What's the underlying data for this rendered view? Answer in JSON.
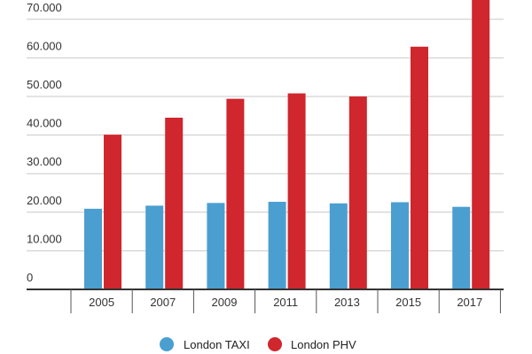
{
  "chart_data": {
    "type": "bar",
    "categories": [
      "2005",
      "2007",
      "2009",
      "2011",
      "2013",
      "2015",
      "2017"
    ],
    "series": [
      {
        "name": "London TAXI",
        "color": "#4a9fd0",
        "values": [
          20900,
          21700,
          22400,
          22700,
          22300,
          22600,
          21400
        ]
      },
      {
        "name": "London PHV",
        "color": "#d0262d",
        "values": [
          40100,
          44500,
          49400,
          50800,
          50000,
          62900,
          80000
        ]
      }
    ],
    "yticks": [
      0,
      10000,
      20000,
      30000,
      40000,
      50000,
      60000,
      70000
    ],
    "ytick_labels": [
      "0",
      "10.000",
      "20.000",
      "30.000",
      "40.000",
      "50.000",
      "60.000",
      "70.000"
    ],
    "ylim": [
      0,
      75500
    ],
    "grid": true,
    "legend": "bottom",
    "title": "",
    "xlabel": "",
    "ylabel": ""
  }
}
